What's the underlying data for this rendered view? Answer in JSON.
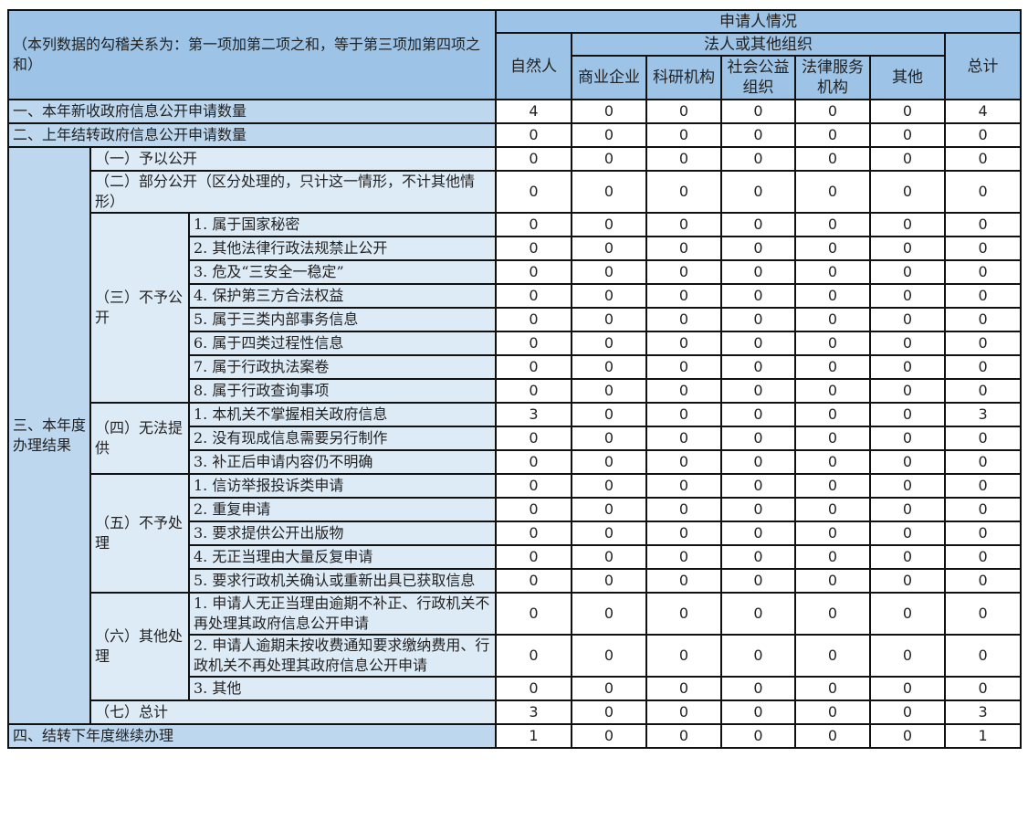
{
  "header": {
    "note": "（本列数据的勾稽关系为：第一项加第二项之和，等于第三项加第四项之和）",
    "applicant": "申请人情况",
    "natural_person": "自然人",
    "legal_org": "法人或其他组织",
    "total": "总计",
    "org_columns": [
      "商业企业",
      "科研机构",
      "社会公益组织",
      "法律服务机构",
      "其他"
    ]
  },
  "colors": {
    "header": "#9dc3e6",
    "level1": "#bdd7ee",
    "level2": "#ddebf7"
  },
  "sections": [
    {
      "type": "full",
      "label": "一、本年新收政府信息公开申请数量",
      "values": [
        4,
        0,
        0,
        0,
        0,
        0,
        4
      ]
    },
    {
      "type": "full",
      "label": "二、上年结转政府信息公开申请数量",
      "values": [
        0,
        0,
        0,
        0,
        0,
        0,
        0
      ]
    },
    {
      "type": "group",
      "label": "三、本年度办理结果",
      "children": [
        {
          "label": "（一）予以公开",
          "values": [
            0,
            0,
            0,
            0,
            0,
            0,
            0
          ]
        },
        {
          "label": "（二）部分公开（区分处理的，只计这一情形，不计其他情形）",
          "values": [
            0,
            0,
            0,
            0,
            0,
            0,
            0
          ]
        },
        {
          "label": "（三）不予公开",
          "items": [
            {
              "label": "1. 属于国家秘密",
              "values": [
                0,
                0,
                0,
                0,
                0,
                0,
                0
              ]
            },
            {
              "label": "2. 其他法律行政法规禁止公开",
              "values": [
                0,
                0,
                0,
                0,
                0,
                0,
                0
              ]
            },
            {
              "label": "3. 危及“三安全一稳定”",
              "values": [
                0,
                0,
                0,
                0,
                0,
                0,
                0
              ]
            },
            {
              "label": "4. 保护第三方合法权益",
              "values": [
                0,
                0,
                0,
                0,
                0,
                0,
                0
              ]
            },
            {
              "label": "5. 属于三类内部事务信息",
              "values": [
                0,
                0,
                0,
                0,
                0,
                0,
                0
              ]
            },
            {
              "label": "6. 属于四类过程性信息",
              "values": [
                0,
                0,
                0,
                0,
                0,
                0,
                0
              ]
            },
            {
              "label": "7. 属于行政执法案卷",
              "values": [
                0,
                0,
                0,
                0,
                0,
                0,
                0
              ]
            },
            {
              "label": "8. 属于行政查询事项",
              "values": [
                0,
                0,
                0,
                0,
                0,
                0,
                0
              ]
            }
          ]
        },
        {
          "label": "（四）无法提供",
          "items": [
            {
              "label": "1. 本机关不掌握相关政府信息",
              "values": [
                3,
                0,
                0,
                0,
                0,
                0,
                3
              ]
            },
            {
              "label": "2. 没有现成信息需要另行制作",
              "values": [
                0,
                0,
                0,
                0,
                0,
                0,
                0
              ]
            },
            {
              "label": "3. 补正后申请内容仍不明确",
              "values": [
                0,
                0,
                0,
                0,
                0,
                0,
                0
              ]
            }
          ]
        },
        {
          "label": "（五）不予处理",
          "items": [
            {
              "label": "1. 信访举报投诉类申请",
              "values": [
                0,
                0,
                0,
                0,
                0,
                0,
                0
              ]
            },
            {
              "label": "2. 重复申请",
              "values": [
                0,
                0,
                0,
                0,
                0,
                0,
                0
              ]
            },
            {
              "label": "3. 要求提供公开出版物",
              "values": [
                0,
                0,
                0,
                0,
                0,
                0,
                0
              ]
            },
            {
              "label": "4. 无正当理由大量反复申请",
              "values": [
                0,
                0,
                0,
                0,
                0,
                0,
                0
              ]
            },
            {
              "label": "5. 要求行政机关确认或重新出具已获取信息",
              "values": [
                0,
                0,
                0,
                0,
                0,
                0,
                0
              ]
            }
          ]
        },
        {
          "label": "（六）其他处理",
          "items": [
            {
              "label": "1. 申请人无正当理由逾期不补正、行政机关不再处理其政府信息公开申请",
              "values": [
                0,
                0,
                0,
                0,
                0,
                0,
                0
              ]
            },
            {
              "label": "2. 申请人逾期未按收费通知要求缴纳费用、行政机关不再处理其政府信息公开申请",
              "values": [
                0,
                0,
                0,
                0,
                0,
                0,
                0
              ]
            },
            {
              "label": "3. 其他",
              "values": [
                0,
                0,
                0,
                0,
                0,
                0,
                0
              ]
            }
          ]
        },
        {
          "label": "（七）总计",
          "values": [
            3,
            0,
            0,
            0,
            0,
            0,
            3
          ]
        }
      ]
    },
    {
      "type": "full",
      "label": "四、结转下年度继续办理",
      "values": [
        1,
        0,
        0,
        0,
        0,
        0,
        1
      ]
    }
  ]
}
